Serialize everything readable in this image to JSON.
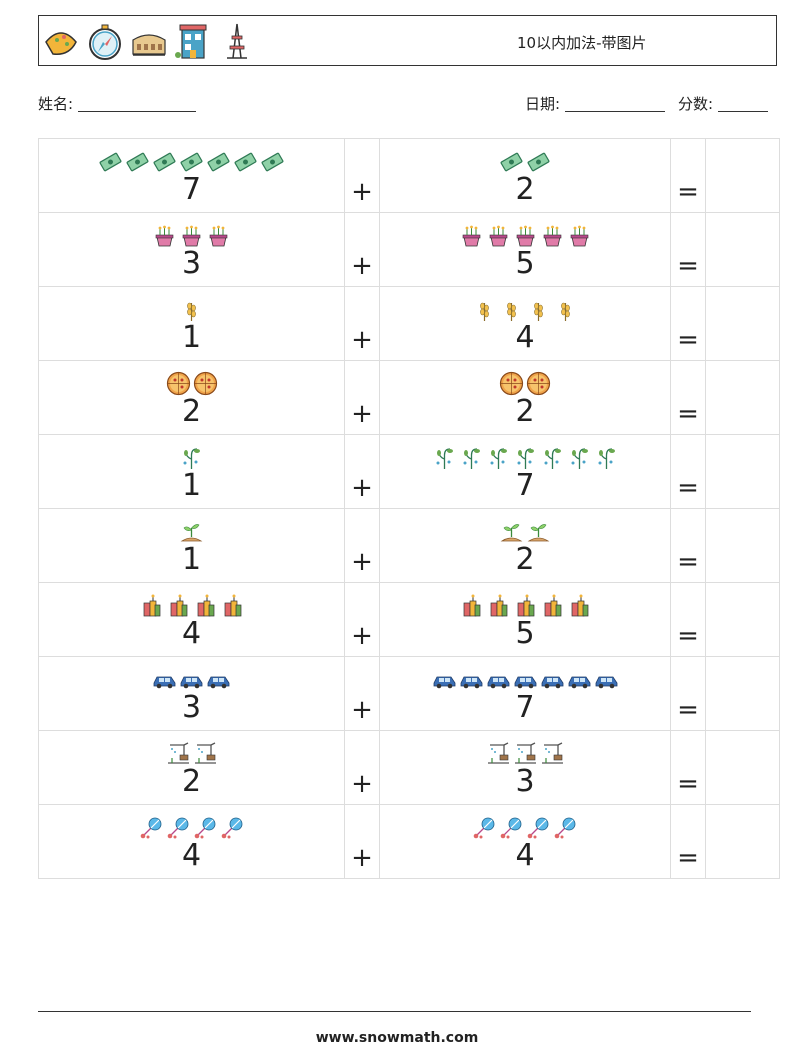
{
  "header": {
    "title": "10以内加法-带图片",
    "icons": [
      "taco-icon",
      "compass-icon",
      "colosseum-icon",
      "building-icon",
      "tower-icon"
    ]
  },
  "fields": {
    "name_label": "姓名:",
    "date_label": "日期:",
    "score_label": "分数:"
  },
  "plus": "+",
  "equals": "=",
  "rows": [
    {
      "icon": "banknote",
      "a": "7",
      "b": "2"
    },
    {
      "icon": "flower-pot",
      "a": "3",
      "b": "5"
    },
    {
      "icon": "wheat",
      "a": "1",
      "b": "4"
    },
    {
      "icon": "pizza",
      "a": "2",
      "b": "2"
    },
    {
      "icon": "sprout-plant",
      "a": "1",
      "b": "7"
    },
    {
      "icon": "seedling",
      "a": "1",
      "b": "2"
    },
    {
      "icon": "firecracker",
      "a": "4",
      "b": "5"
    },
    {
      "icon": "car",
      "a": "3",
      "b": "7"
    },
    {
      "icon": "irrigation",
      "a": "2",
      "b": "3"
    },
    {
      "icon": "molecule",
      "a": "4",
      "b": "4"
    }
  ],
  "footer": {
    "url": "www.snowmath.com"
  }
}
